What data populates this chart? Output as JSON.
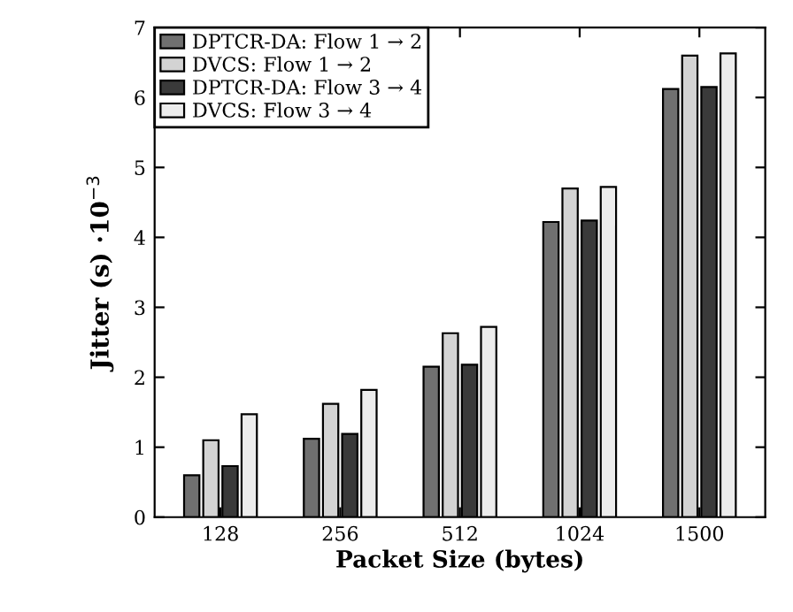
{
  "chart_data": {
    "type": "bar",
    "xlabel": "Packet Size (bytes)",
    "ylabel": "Jitter (s) ·10$^{−3}$",
    "categories": [
      "128",
      "256",
      "512",
      "1024",
      "1500"
    ],
    "series": [
      {
        "name": "DPTCR-DA: Flow 1 → 2",
        "color": "#707070",
        "values": [
          0.6,
          1.12,
          2.15,
          4.22,
          6.12
        ]
      },
      {
        "name": "DVCS: Flow 1 → 2",
        "color": "#d3d3d3",
        "values": [
          1.1,
          1.62,
          2.63,
          4.7,
          6.6
        ]
      },
      {
        "name": "DPTCR-DA: Flow 3 → 4",
        "color": "#3a3a3a",
        "values": [
          0.73,
          1.19,
          2.18,
          4.24,
          6.15
        ]
      },
      {
        "name": "DVCS: Flow 3 → 4",
        "color": "#ececec",
        "values": [
          1.47,
          1.82,
          2.72,
          4.72,
          6.63
        ]
      }
    ],
    "ylim": [
      0,
      7
    ],
    "yticks": [
      0,
      1,
      2,
      3,
      4,
      5,
      6,
      7
    ],
    "grid": false,
    "legend": "top left"
  }
}
